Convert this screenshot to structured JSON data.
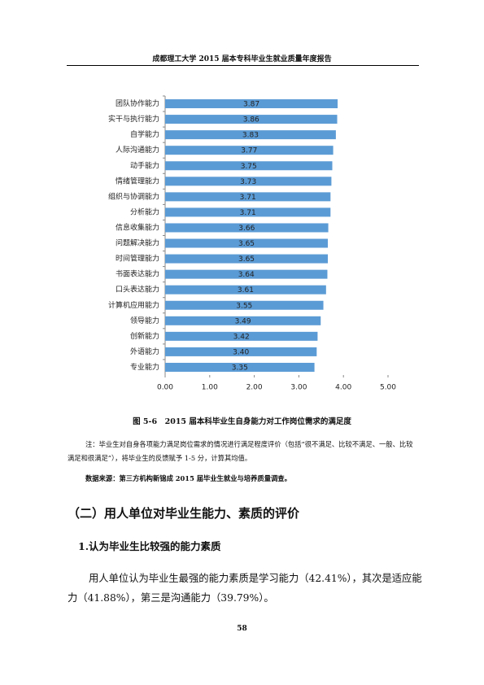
{
  "header": {
    "title": "成都理工大学 2015 届本专科毕业生就业质量年度报告"
  },
  "chart_data": {
    "type": "bar",
    "orientation": "horizontal",
    "categories": [
      "团队协作能力",
      "实干与执行能力",
      "自学能力",
      "人际沟通能力",
      "动手能力",
      "情绪管理能力",
      "组织与协调能力",
      "分析能力",
      "信息收集能力",
      "问题解决能力",
      "时间管理能力",
      "书面表达能力",
      "口头表达能力",
      "计算机应用能力",
      "领导能力",
      "创新能力",
      "外语能力",
      "专业能力"
    ],
    "values": [
      3.87,
      3.86,
      3.83,
      3.77,
      3.75,
      3.73,
      3.71,
      3.71,
      3.66,
      3.65,
      3.65,
      3.64,
      3.61,
      3.55,
      3.49,
      3.42,
      3.4,
      3.35
    ],
    "value_labels": [
      "3.87",
      "3.86",
      "3.83",
      "3.77",
      "3.75",
      "3.73",
      "3.71",
      "3.71",
      "3.66",
      "3.65",
      "3.65",
      "3.64",
      "3.61",
      "3.55",
      "3.49",
      "3.42",
      "3.40",
      "3.35"
    ],
    "color": "#5b9bd5",
    "xlim": [
      0,
      5
    ],
    "xticks": [
      {
        "value": 0,
        "label": "0.00"
      },
      {
        "value": 1,
        "label": "1.00"
      },
      {
        "value": 2,
        "label": "2.00"
      },
      {
        "value": 3,
        "label": "3.00"
      },
      {
        "value": 4,
        "label": "4.00"
      },
      {
        "value": 5,
        "label": "5.00"
      }
    ],
    "grid": false
  },
  "caption": "图 5-6　2015 届本科毕业生自身能力对工作岗位需求的满足度",
  "note": "注：毕业生对自身各项能力满足岗位需求的情况进行满足程度评价（包括“很不满足、比较不满足、一般、比较满足和很满足”），将毕业生的反馈赋予 1-5 分，计算其均值。",
  "source": "数据来源：第三方机构新锦成 2015 届毕业生就业与培养质量调查。",
  "section_heading": "（二）用人单位对毕业生能力、素质的评价",
  "subheading": "1.认为毕业生比较强的能力素质",
  "paragraph": "用人单位认为毕业生最强的能力素质是学习能力（42.41%），其次是适应能力（41.88%），第三是沟通能力（39.79%）。",
  "page_number": "58"
}
